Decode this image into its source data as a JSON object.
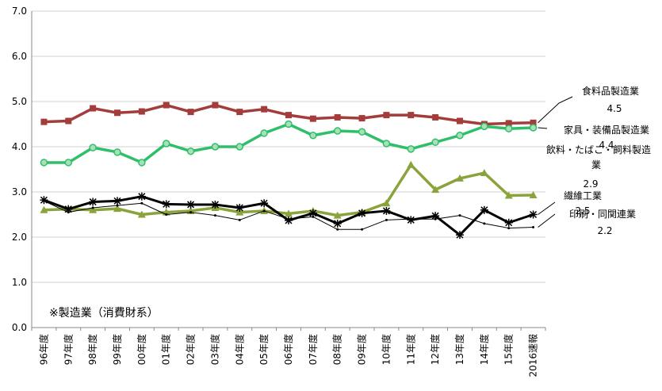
{
  "chart_data": {
    "type": "line",
    "categories": [
      "96年度",
      "97年度",
      "98年度",
      "99年度",
      "00年度",
      "01年度",
      "02年度",
      "03年度",
      "04年度",
      "05年度",
      "06年度",
      "07年度",
      "08年度",
      "09年度",
      "10年度",
      "11年度",
      "12年度",
      "13年度",
      "14年度",
      "15年度",
      "2016速報"
    ],
    "ylim": [
      0,
      7
    ],
    "yticks": [
      "0.0",
      "1.0",
      "2.0",
      "3.0",
      "4.0",
      "5.0",
      "6.0",
      "7.0"
    ],
    "grid": true,
    "annotation": "※製造業（消費財系）",
    "series": [
      {
        "name": "食料品製造業",
        "value_label": "4.5",
        "color": "#a33c3a",
        "marker": "square",
        "values": [
          4.55,
          4.57,
          4.85,
          4.75,
          4.78,
          4.92,
          4.77,
          4.92,
          4.77,
          4.83,
          4.7,
          4.62,
          4.65,
          4.63,
          4.7,
          4.7,
          4.65,
          4.57,
          4.5,
          4.52,
          4.53
        ]
      },
      {
        "name": "家具・装備品製造業",
        "value_label": "4.4",
        "color": "#2fbf6a",
        "marker": "circle",
        "values": [
          3.65,
          3.65,
          3.98,
          3.88,
          3.65,
          4.07,
          3.9,
          4.0,
          4.0,
          4.3,
          4.5,
          4.25,
          4.35,
          4.33,
          4.07,
          3.95,
          4.1,
          4.25,
          4.45,
          4.4,
          4.42
        ]
      },
      {
        "name": "飲料・たばこ・飼料製造業",
        "value_label": "2.9",
        "color": "#8aa33b",
        "marker": "triangle",
        "values": [
          2.6,
          2.62,
          2.6,
          2.63,
          2.5,
          2.55,
          2.58,
          2.65,
          2.55,
          2.58,
          2.52,
          2.58,
          2.48,
          2.55,
          2.75,
          3.6,
          3.05,
          3.3,
          3.42,
          2.92,
          2.93
        ]
      },
      {
        "name": "繊維工業",
        "value_label": "2.5",
        "color": "#000000",
        "marker": "star",
        "values": [
          2.82,
          2.62,
          2.78,
          2.8,
          2.9,
          2.73,
          2.72,
          2.72,
          2.65,
          2.75,
          2.37,
          2.53,
          2.3,
          2.53,
          2.58,
          2.38,
          2.47,
          2.05,
          2.6,
          2.32,
          2.5
        ]
      },
      {
        "name": "印刷・同関連業",
        "value_label": "2.2",
        "color": "#000000",
        "marker": "dot",
        "values": [
          2.8,
          2.55,
          2.65,
          2.7,
          2.75,
          2.5,
          2.55,
          2.48,
          2.38,
          2.58,
          2.4,
          2.45,
          2.17,
          2.17,
          2.38,
          2.4,
          2.4,
          2.48,
          2.3,
          2.2,
          2.22
        ]
      }
    ]
  }
}
